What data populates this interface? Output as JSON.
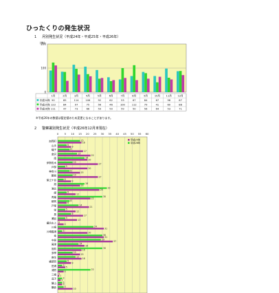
{
  "page": {
    "title": "ひったくりの発生状況"
  },
  "section1": {
    "number": "1",
    "heading": "月別発生状況（平成24年・平成25年・平成26年）",
    "unit": "(件)",
    "note": "※平成26年の数値は暫定値のため変更になることがあります。"
  },
  "section2": {
    "number": "2",
    "heading": "警察署別発生状況（平成26年12月末現在）"
  },
  "colors": {
    "plot_bg": "#f6f6b4",
    "series_2012": "#2bc7c0",
    "series_2013": "#31d62e",
    "series_2014": "#c13aa8",
    "bar2_2013": "#33d633",
    "bar2_2014": "#a8379e"
  },
  "chart_data": [
    {
      "type": "bar",
      "categories": [
        "1月",
        "2月",
        "3月",
        "4月",
        "5月",
        "6月",
        "7月",
        "8月",
        "9月",
        "10月",
        "11月",
        "12月"
      ],
      "series": [
        {
          "name": "平成24年",
          "values": [
            90,
            85,
            114,
            106,
            92,
            62,
            53,
            67,
            84,
            67,
            98,
            87
          ]
        },
        {
          "name": "平成25年",
          "values": [
            123,
            84,
            97,
            75,
            56,
            46,
            100,
            112,
            79,
            41,
            60,
            88
          ]
        },
        {
          "name": "平成26年",
          "values": [
            111,
            47,
            73,
            66,
            59,
            50,
            59,
            50,
            56,
            64,
            53,
            71
          ]
        }
      ],
      "ylim": [
        0,
        200
      ],
      "yticks": [
        "0",
        "100",
        "200"
      ],
      "grid": true
    },
    {
      "type": "bar",
      "orientation": "horizontal",
      "xlim": [
        0,
        60
      ],
      "xticks": [
        "0",
        "5",
        "10",
        "15",
        "20",
        "25",
        "30",
        "35",
        "40",
        "45",
        "50",
        "55",
        "60"
      ],
      "series_names": [
        "平成25年",
        "平成26年"
      ],
      "categories": [
        "加賀町",
        "山手",
        "磯子",
        "金沢",
        "南",
        "伊勢佐木",
        "戸部",
        "神奈川",
        "鶴見",
        "保土ケ谷",
        "旭",
        "港北",
        "緑",
        "青葉",
        "都筑",
        "戸塚",
        "栄",
        "泉",
        "瀬谷",
        "横浜水上",
        "川崎",
        "川崎臨港",
        "幸",
        "中原",
        "高津",
        "宮前",
        "多摩",
        "麻生",
        "横須賀",
        "田浦",
        "浦賀",
        "三崎",
        "逗子",
        "葉山",
        "鎌倉"
      ],
      "values_2013": [
        15,
        6,
        8,
        13,
        18,
        10,
        5,
        8,
        10,
        4,
        18,
        33,
        6,
        30,
        8,
        14,
        5,
        9,
        5,
        0,
        24,
        3,
        30,
        29,
        14,
        30,
        10,
        12,
        6,
        3,
        22,
        0,
        3,
        3,
        4
      ],
      "values_2014": [
        16,
        9,
        17,
        22,
        20,
        27,
        20,
        15,
        27,
        9,
        15,
        28,
        12,
        22,
        6,
        21,
        12,
        17,
        13,
        4,
        31,
        20,
        31,
        37,
        18,
        16,
        15,
        16,
        9,
        5,
        4,
        1,
        2,
        3,
        10
      ]
    }
  ]
}
